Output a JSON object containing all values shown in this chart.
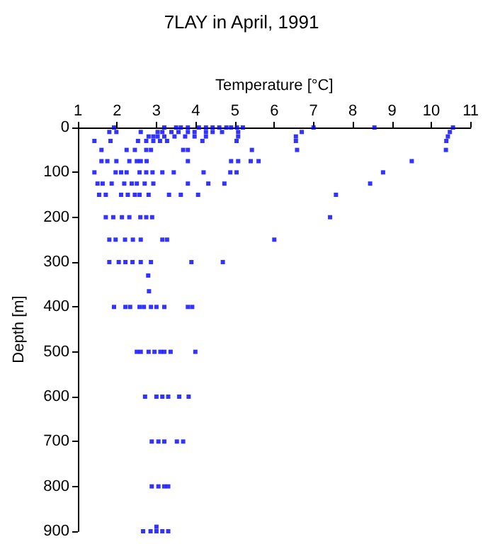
{
  "chart_data": {
    "type": "scatter",
    "title": "7LAY in April, 1991",
    "xlabel": "Temperature [°C]",
    "ylabel": "Depth [m]",
    "xlim": [
      1,
      11
    ],
    "xticks": [
      1,
      2,
      3,
      4,
      5,
      6,
      7,
      8,
      9,
      10,
      11
    ],
    "ylim": [
      900,
      0
    ],
    "yticks": [
      0,
      100,
      200,
      300,
      400,
      500,
      600,
      700,
      800,
      900
    ],
    "grid": false,
    "marker": "square",
    "series": [
      {
        "color": "#0000ff",
        "x": [
          1.92,
          3.2,
          3.5,
          3.62,
          3.8,
          4.08,
          4.26,
          4.43,
          4.6,
          4.78,
          4.9,
          5.05,
          5.2,
          7.0,
          8.55,
          10.55,
          1.8,
          1.98,
          2.6,
          3.03,
          3.15,
          3.38,
          3.56,
          3.8,
          3.97,
          4.26,
          4.43,
          4.67,
          5.08,
          6.7,
          10.47,
          2.8,
          2.92,
          3.03,
          3.2,
          3.46,
          3.73,
          3.97,
          4.26,
          5.08,
          6.55,
          10.42,
          1.42,
          1.83,
          2.53,
          2.74,
          2.92,
          3.09,
          3.27,
          4.17,
          5.04,
          6.55,
          10.38,
          1.6,
          2.24,
          2.45,
          2.74,
          2.86,
          3.68,
          3.8,
          5.43,
          6.58,
          10.37,
          1.6,
          1.75,
          1.98,
          2.31,
          2.5,
          2.6,
          2.75,
          3.8,
          4.9,
          5.08,
          5.4,
          5.6,
          9.5,
          1.42,
          1.96,
          2.1,
          2.24,
          2.57,
          2.74,
          2.9,
          3.15,
          3.44,
          4.2,
          4.88,
          5.04,
          8.77,
          1.5,
          1.63,
          1.86,
          2.18,
          2.37,
          2.5,
          2.7,
          2.92,
          3.8,
          4.32,
          4.73,
          8.44,
          1.54,
          1.71,
          2.1,
          2.27,
          2.45,
          2.57,
          2.8,
          3.32,
          3.62,
          4.06,
          7.57,
          1.71,
          1.9,
          2.12,
          2.31,
          2.59,
          2.74,
          2.89,
          7.42,
          1.8,
          1.96,
          2.2,
          2.4,
          2.6,
          3.15,
          3.27,
          6.0,
          1.8,
          2.04,
          2.21,
          2.39,
          2.6,
          2.86,
          3.89,
          4.69,
          2.79,
          2.81,
          1.92,
          2.21,
          2.33,
          2.57,
          2.68,
          2.86,
          3.0,
          3.2,
          3.8,
          3.91,
          2.5,
          2.6,
          2.8,
          2.95,
          3.1,
          3.2,
          3.36,
          3.99,
          2.71,
          3.0,
          3.15,
          3.3,
          3.58,
          3.82,
          2.88,
          3.05,
          3.2,
          3.52,
          3.68,
          2.88,
          3.05,
          3.2,
          3.3,
          3.0,
          2.66,
          2.85,
          3.0,
          3.15,
          3.3
        ],
        "values": [
          0,
          0,
          0,
          0,
          0,
          0,
          0,
          0,
          0,
          0,
          0,
          0,
          0,
          0,
          0,
          0,
          10,
          10,
          10,
          10,
          10,
          10,
          10,
          10,
          10,
          10,
          10,
          10,
          10,
          10,
          10,
          20,
          20,
          20,
          20,
          20,
          20,
          20,
          20,
          20,
          20,
          20,
          30,
          30,
          30,
          30,
          30,
          30,
          30,
          30,
          30,
          30,
          30,
          50,
          50,
          50,
          50,
          50,
          50,
          50,
          50,
          50,
          50,
          75,
          75,
          75,
          75,
          75,
          75,
          75,
          75,
          75,
          75,
          75,
          75,
          75,
          100,
          100,
          100,
          100,
          100,
          100,
          100,
          100,
          100,
          100,
          100,
          100,
          100,
          125,
          125,
          125,
          125,
          125,
          125,
          125,
          125,
          125,
          125,
          125,
          125,
          150,
          150,
          150,
          150,
          150,
          150,
          150,
          150,
          150,
          150,
          150,
          200,
          200,
          200,
          200,
          200,
          200,
          200,
          200,
          250,
          250,
          250,
          250,
          250,
          250,
          250,
          250,
          300,
          300,
          300,
          300,
          300,
          300,
          300,
          300,
          330,
          365,
          400,
          400,
          400,
          400,
          400,
          400,
          400,
          400,
          400,
          400,
          500,
          500,
          500,
          500,
          500,
          500,
          500,
          500,
          600,
          600,
          600,
          600,
          600,
          600,
          700,
          700,
          700,
          700,
          700,
          800,
          800,
          800,
          800,
          890,
          900,
          900,
          900,
          900,
          900
        ]
      }
    ]
  }
}
